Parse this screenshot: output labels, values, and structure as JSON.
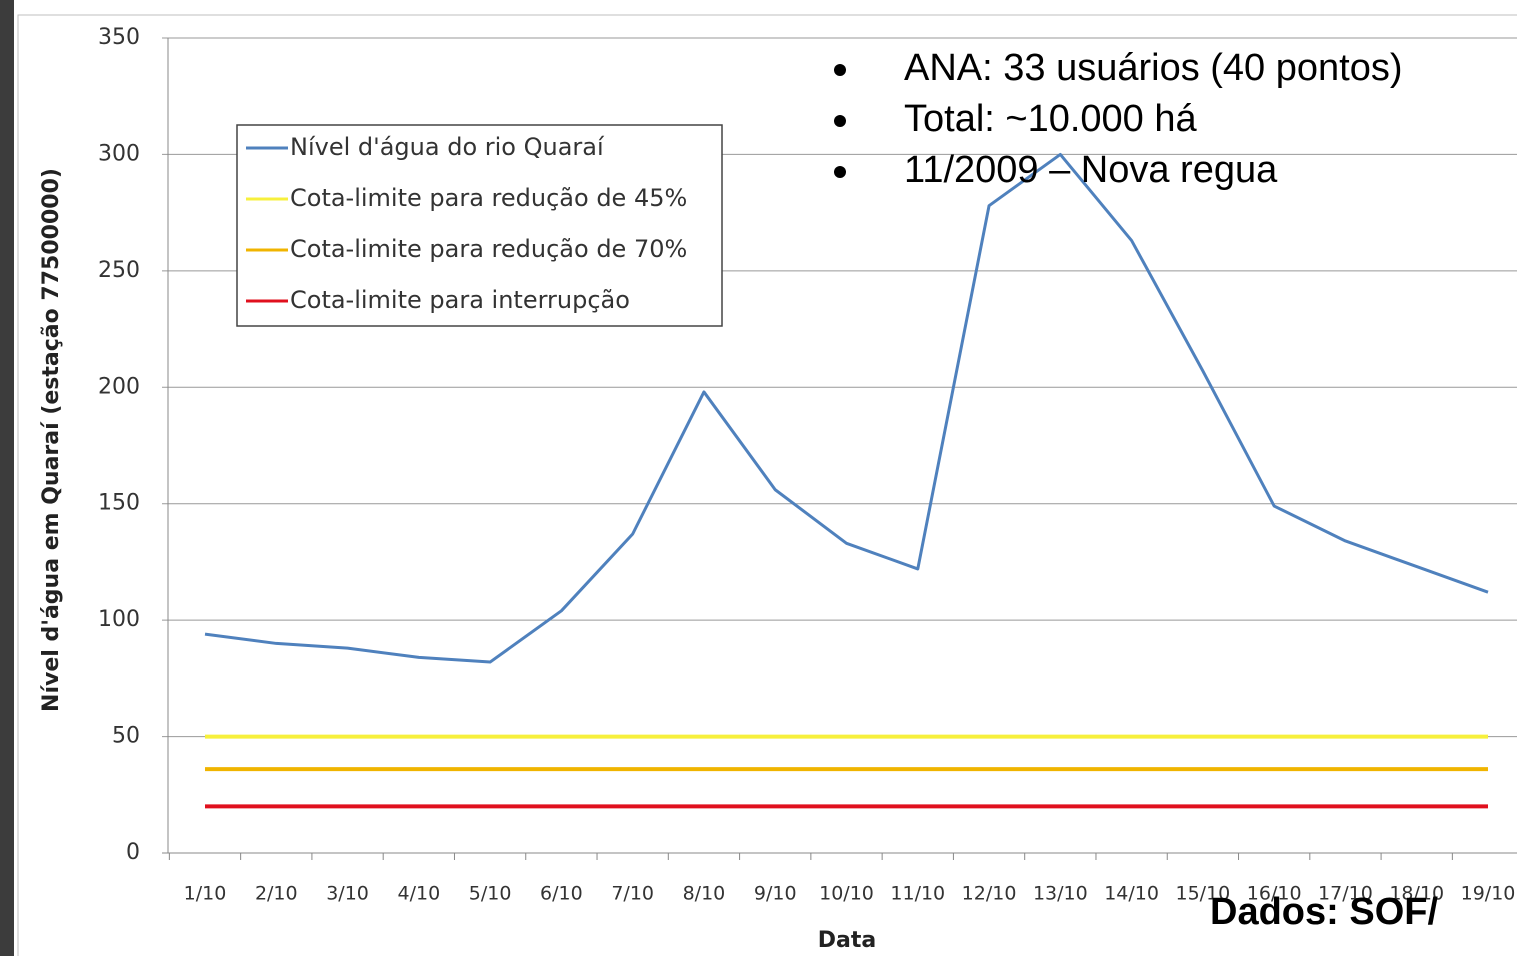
{
  "chart_data": {
    "type": "line",
    "y_label": "Nível d'água em Quaraí (estação 77500000)",
    "x_label": "Data",
    "categories": [
      "1/10",
      "2/10",
      "3/10",
      "4/10",
      "5/10",
      "6/10",
      "7/10",
      "8/10",
      "9/10",
      "10/10",
      "11/10",
      "12/10",
      "13/10",
      "14/10",
      "15/10",
      "16/10",
      "17/10",
      "18/10",
      "19/10"
    ],
    "series": [
      {
        "name": "Nível d'água do rio Quaraí",
        "color": "#4f81bd",
        "values": [
          94,
          90,
          88,
          84,
          82,
          104,
          137,
          198,
          156,
          133,
          122,
          278,
          300,
          263,
          207,
          149,
          134,
          123,
          112
        ]
      },
      {
        "name": "Cota-limite para redução de 45%",
        "color": "#f7f03c",
        "values": [
          50,
          50,
          50,
          50,
          50,
          50,
          50,
          50,
          50,
          50,
          50,
          50,
          50,
          50,
          50,
          50,
          50,
          50,
          50
        ]
      },
      {
        "name": "Cota-limite para redução de 70%",
        "color": "#f0b400",
        "values": [
          36,
          36,
          36,
          36,
          36,
          36,
          36,
          36,
          36,
          36,
          36,
          36,
          36,
          36,
          36,
          36,
          36,
          36,
          36
        ]
      },
      {
        "name": "Cota-limite para interrupção",
        "color": "#e0101e",
        "values": [
          20,
          20,
          20,
          20,
          20,
          20,
          20,
          20,
          20,
          20,
          20,
          20,
          20,
          20,
          20,
          20,
          20,
          20,
          20
        ]
      }
    ],
    "ylim": [
      0,
      350
    ],
    "yticks": [
      0,
      50,
      100,
      150,
      200,
      250,
      300,
      350
    ],
    "grid": true,
    "legend": "upper left",
    "annotations": [
      "ANA: 33 usuários (40 pontos)",
      "Total: ~10.000 há",
      "11/2009 – Nova regua"
    ],
    "source": "Dados:  SOF/"
  }
}
